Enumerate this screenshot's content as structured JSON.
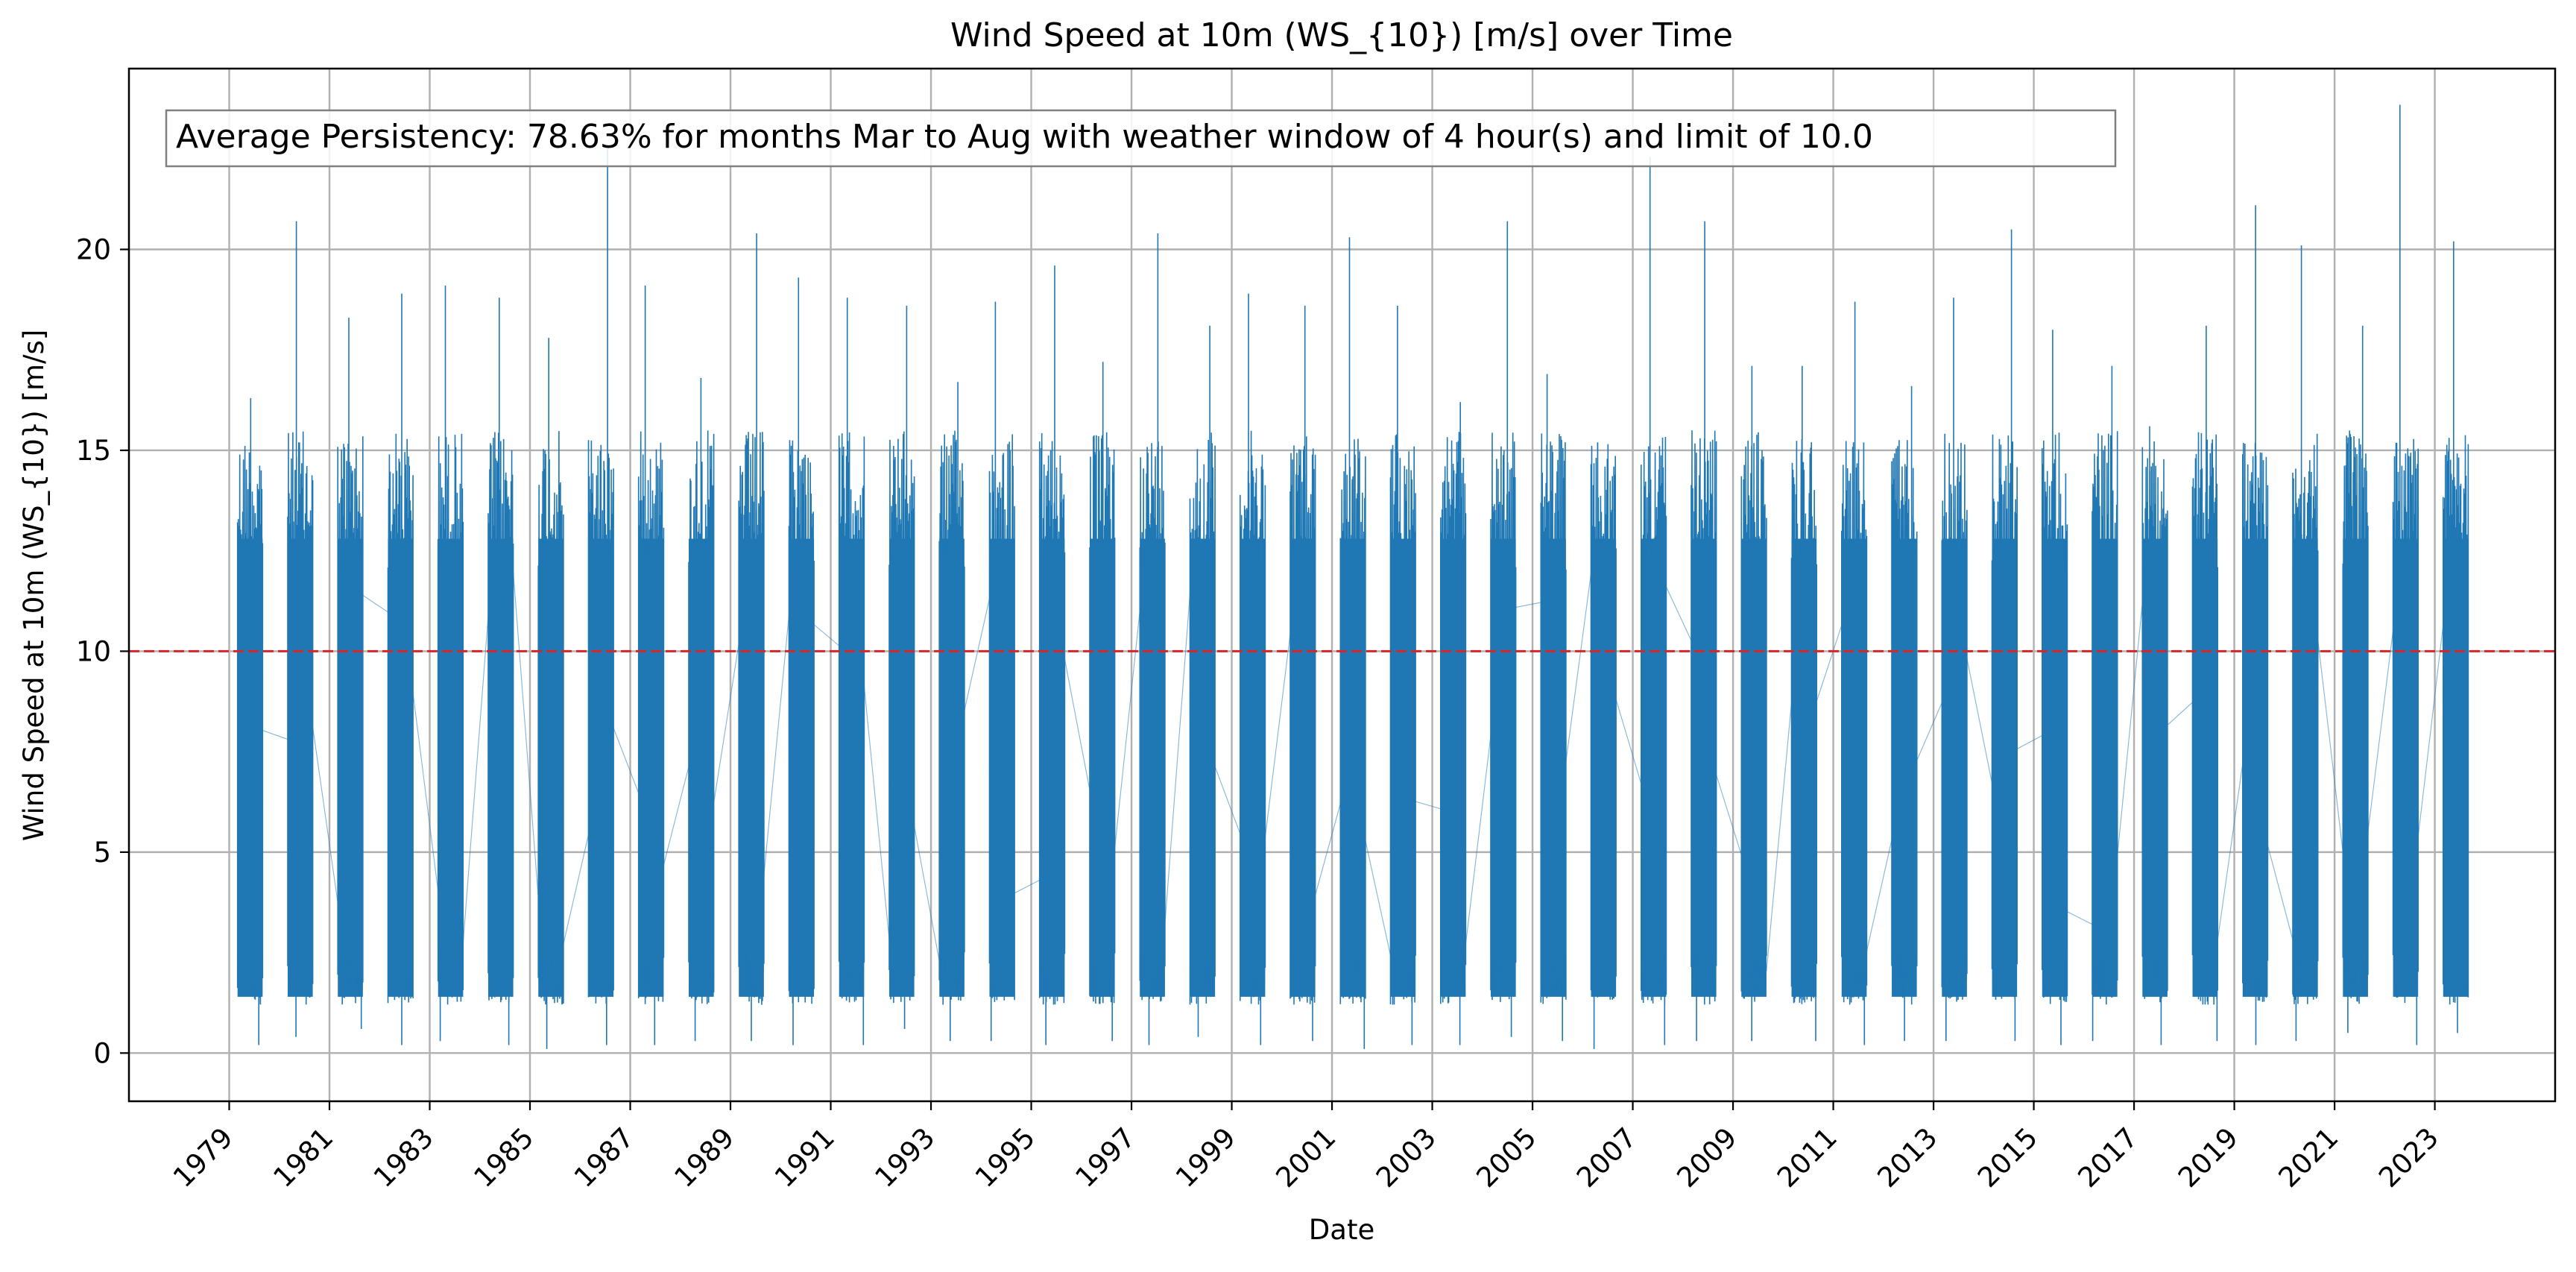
{
  "chart_data": {
    "type": "line",
    "title": "Wind Speed at 10m (WS_{10}) [m/s] over Time",
    "xlabel": "Date",
    "ylabel": "Wind Speed at 10m (WS_{10}) [m/s]",
    "x_range": [
      1977.0,
      2025.4
    ],
    "ylim": [
      -1.2,
      24.5
    ],
    "x_ticks": [
      "1979",
      "1981",
      "1983",
      "1985",
      "1987",
      "1989",
      "1991",
      "1993",
      "1995",
      "1997",
      "1999",
      "2001",
      "2003",
      "2005",
      "2007",
      "2009",
      "2011",
      "2013",
      "2015",
      "2017",
      "2019",
      "2021",
      "2023"
    ],
    "y_ticks": [
      "0",
      "5",
      "10",
      "15",
      "20"
    ],
    "grid": true,
    "series": [
      {
        "color": "#1f77b4",
        "season_months": "Mar to Aug",
        "years": [
          1979,
          1980,
          1981,
          1982,
          1983,
          1984,
          1985,
          1986,
          1987,
          1988,
          1989,
          1990,
          1991,
          1992,
          1993,
          1994,
          1995,
          1996,
          1997,
          1998,
          1999,
          2000,
          2001,
          2002,
          2003,
          2004,
          2005,
          2006,
          2007,
          2008,
          2009,
          2010,
          2011,
          2012,
          2013,
          2014,
          2015,
          2016,
          2017,
          2018,
          2019,
          2020,
          2021,
          2022,
          2023
        ],
        "season_max": [
          16.3,
          20.7,
          18.3,
          18.9,
          19.1,
          18.8,
          17.8,
          22.5,
          19.1,
          16.8,
          20.4,
          19.3,
          18.8,
          18.6,
          16.7,
          18.7,
          19.6,
          17.2,
          20.4,
          18.1,
          18.9,
          18.6,
          20.3,
          18.6,
          16.2,
          20.7,
          16.9,
          15.2,
          22.3,
          20.7,
          17.1,
          17.1,
          18.7,
          16.6,
          18.8,
          20.5,
          18.0,
          17.1,
          15.6,
          18.1,
          21.1,
          20.1,
          18.1,
          23.6,
          20.2
        ],
        "season_min": [
          0.2,
          0.4,
          0.6,
          0.2,
          0.3,
          0.2,
          0.1,
          0.2,
          0.2,
          0.3,
          0.3,
          0.2,
          0.2,
          0.6,
          0.3,
          0.3,
          0.2,
          0.3,
          0.2,
          0.4,
          0.2,
          0.3,
          0.1,
          0.2,
          0.2,
          0.4,
          0.3,
          0.1,
          0.2,
          0.3,
          0.3,
          0.3,
          0.2,
          0.3,
          0.3,
          0.3,
          0.2,
          0.3,
          0.2,
          0.3,
          0.2,
          0.3,
          0.5,
          0.2,
          0.5
        ]
      }
    ],
    "threshold_line": {
      "value": 10.0,
      "color": "#d62728",
      "style": "dashed"
    },
    "annotation": "Average Persistency: 78.63% for months Mar to Aug with weather window of 4 hour(s) and limit of 10.0"
  }
}
